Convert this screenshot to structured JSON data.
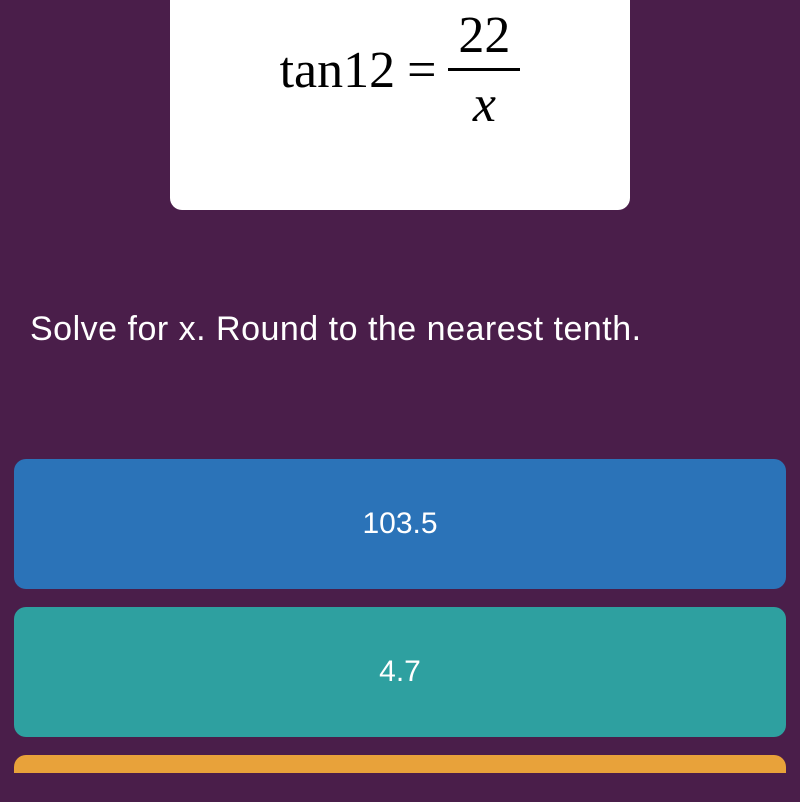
{
  "equation": {
    "left": "tan12",
    "equals": "=",
    "numerator": "22",
    "denominator": "x"
  },
  "question": "Solve for x. Round to the nearest tenth.",
  "answers": [
    {
      "label": "103.5",
      "color": "#2b73b8"
    },
    {
      "label": "4.7",
      "color": "#2ea0a0"
    }
  ],
  "colors": {
    "background": "#4a1e4a",
    "card_background": "#ffffff",
    "text_white": "#ffffff",
    "equation_text": "#000000",
    "partial_bar": "#e8a23a"
  },
  "typography": {
    "equation_fontsize": 52,
    "question_fontsize": 34,
    "answer_fontsize": 30
  }
}
